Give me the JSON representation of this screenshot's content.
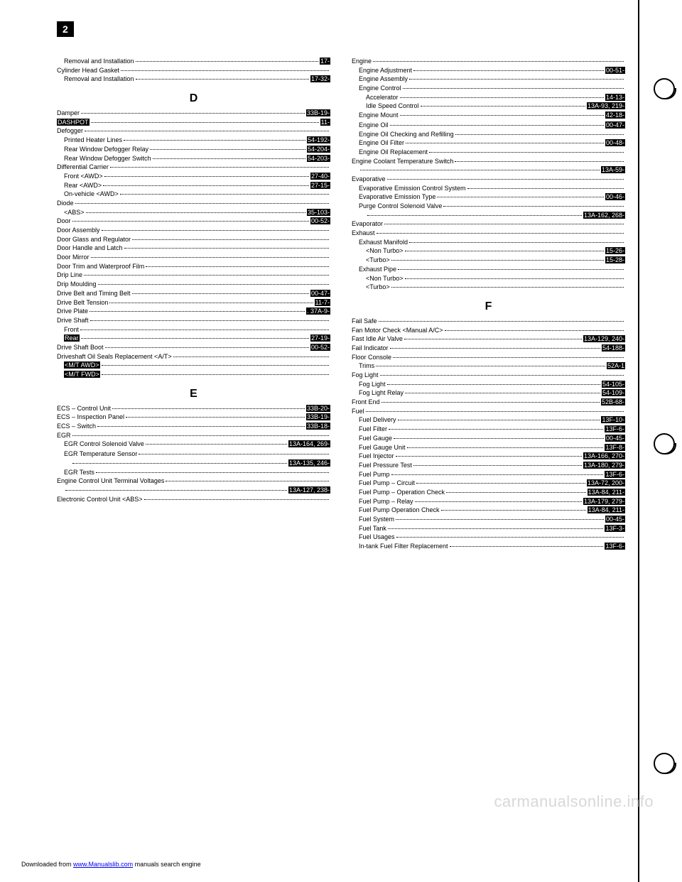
{
  "page_number": "2",
  "watermark": "carmanualsonline.info",
  "footer": {
    "prefix": "Downloaded from ",
    "link": "www.Manualslib.com",
    "suffix": " manuals search engine"
  },
  "left": [
    {
      "t": "Removal and Installation",
      "r": "17-",
      "i": 1,
      "hl_r": true
    },
    {
      "t": "Cylinder Head Gasket",
      "r": "",
      "i": 0
    },
    {
      "t": "Removal and Installation",
      "r": "17-32-",
      "i": 1,
      "hl_r": true
    },
    {
      "section": "D"
    },
    {
      "t": "Damper",
      "r": "33B-19-",
      "i": 0,
      "hl_r": true,
      "hl_t": false
    },
    {
      "t": "DASHPOT",
      "r": "11-",
      "i": 0,
      "hl_t": true,
      "hl_r": true
    },
    {
      "t": "Defogger",
      "r": "",
      "i": 0
    },
    {
      "t": "Printed Heater Lines",
      "r": "54-192-",
      "i": 1,
      "hl_r": true
    },
    {
      "t": "Rear Window Defogger Relay",
      "r": "54-204-",
      "i": 1,
      "hl_r": true
    },
    {
      "t": "Rear Window Defogger Switch",
      "r": "54-203-",
      "i": 1,
      "hl_r": true
    },
    {
      "t": "Differential Carrier",
      "r": "",
      "i": 0
    },
    {
      "t": "Front <AWD>",
      "r": "27-40-",
      "i": 1,
      "hl_r": true
    },
    {
      "t": "Rear <AWD>",
      "r": "27-15-",
      "i": 1,
      "hl_r": true
    },
    {
      "t": "On-vehicle <AWD>",
      "r": "",
      "i": 1
    },
    {
      "t": "Diode",
      "r": "",
      "i": 0
    },
    {
      "t": "<ABS>",
      "r": "35-103-",
      "i": 1,
      "hl_r": true
    },
    {
      "t": "Door",
      "r": "00-52-",
      "i": 0,
      "hl_r": true
    },
    {
      "t": "Door Assembly",
      "r": "",
      "i": 0
    },
    {
      "t": "Door Glass and Regulator",
      "r": "",
      "i": 0
    },
    {
      "t": "Door Handle and Latch",
      "r": "",
      "i": 0
    },
    {
      "t": "Door Mirror",
      "r": "",
      "i": 0
    },
    {
      "t": "Door Trim and Waterproof Film",
      "r": "",
      "i": 0
    },
    {
      "t": "Drip Line",
      "r": "",
      "i": 0
    },
    {
      "t": "Drip Moulding",
      "r": "",
      "i": 0
    },
    {
      "t": "Drive Belt and Timing Belt",
      "r": "00-47-",
      "i": 0,
      "hl_r": true
    },
    {
      "t": "Drive Belt Tension",
      "r": "11-7-",
      "i": 0,
      "hl_r": true
    },
    {
      "t": "Drive Plate",
      "r": ". 37A-9-",
      "i": 0,
      "hl_r": true
    },
    {
      "t": "Drive Shaft",
      "r": "",
      "i": 0
    },
    {
      "t": "Front",
      "r": "",
      "i": 1
    },
    {
      "t": "Rear",
      "r": "27-19-",
      "i": 1,
      "hl_t": true,
      "hl_r": true
    },
    {
      "t": "Drive Shaft Boot",
      "r": "00-52-",
      "i": 0,
      "hl_r": true
    },
    {
      "t": "Driveshaft Oil Seals Replacement <A/T>",
      "r": "",
      "i": 0
    },
    {
      "t": "<M/T AWD>",
      "r": "",
      "i": 1,
      "hl_t": true
    },
    {
      "t": "<M/T FWD>",
      "r": "",
      "i": 1,
      "hl_t": true
    },
    {
      "section": "E"
    },
    {
      "t": "ECS – Control Unit",
      "r": "33B-20-",
      "i": 0,
      "hl_r": true
    },
    {
      "t": "ECS – Inspection Panel",
      "r": "33B-19-",
      "i": 0,
      "hl_r": true
    },
    {
      "t": "ECS – Switch",
      "r": "33B-18-",
      "i": 0,
      "hl_r": true
    },
    {
      "t": "EGR",
      "r": "",
      "i": 0
    },
    {
      "t": "EGR Control Solenoid Valve",
      "r": "13A-164, 269-",
      "i": 1,
      "hl_r": true
    },
    {
      "t": " ",
      "r": " ",
      "i": 1,
      "noline": true
    },
    {
      "t": "EGR Temperature Sensor",
      "r": "",
      "i": 1
    },
    {
      "t": "",
      "r": "13A-135, 246-",
      "i": 2,
      "hl_r": true
    },
    {
      "t": "EGR Tests",
      "r": "",
      "i": 1
    },
    {
      "t": "Engine Control Unit Terminal Voltages",
      "r": "",
      "i": 0
    },
    {
      "t": "",
      "r": "13A-127, 238-",
      "i": 1,
      "hl_r": true
    },
    {
      "t": "Electronic Control Unit <ABS>",
      "r": "",
      "i": 0
    }
  ],
  "right": [
    {
      "t": "Engine",
      "r": "",
      "i": 0
    },
    {
      "t": "Engine Adjustment",
      "r": "00-51-",
      "i": 1,
      "hl_r": true
    },
    {
      "t": "Engine Assembly",
      "r": "",
      "i": 1
    },
    {
      "t": "Engine Control",
      "r": "",
      "i": 1
    },
    {
      "t": "Accelerator",
      "r": "14-13-",
      "i": 2,
      "hl_r": true
    },
    {
      "t": "Idle Speed Control",
      "r": "13A-93, 219-",
      "i": 2,
      "hl_r": true
    },
    {
      "t": "Engine Mount",
      "r": "42-18-",
      "i": 1,
      "hl_r": true
    },
    {
      "t": " ",
      "r": " ",
      "i": 1,
      "noline": true
    },
    {
      "t": "Engine Oil",
      "r": "00-47-",
      "i": 1,
      "hl_r": true
    },
    {
      "t": "Engine Oil Checking and Refilling",
      "r": "",
      "i": 1
    },
    {
      "t": "Engine Oil Filter",
      "r": "00-48-",
      "i": 1,
      "hl_r": true
    },
    {
      "t": "Engine Oil Replacement",
      "r": "",
      "i": 1
    },
    {
      "t": "Engine Coolant Temperature Switch",
      "r": "",
      "i": 0
    },
    {
      "t": "",
      "r": "13A-59-",
      "i": 1,
      "hl_r": true
    },
    {
      "t": "Evaporative",
      "r": "",
      "i": 0
    },
    {
      "t": "Evaporative Emission Control System",
      "r": "",
      "i": 1
    },
    {
      "t": "Evaporative Emission Type",
      "r": "00-46-",
      "i": 1,
      "hl_r": true
    },
    {
      "t": "Purge Control Solenoid Valve",
      "r": "",
      "i": 1
    },
    {
      "t": "",
      "r": "13A-162, 268-",
      "i": 2,
      "hl_r": true
    },
    {
      "t": "Evaporator",
      "r": "",
      "i": 0
    },
    {
      "t": "Exhaust",
      "r": "",
      "i": 0
    },
    {
      "t": "Exhaust Manifold",
      "r": "",
      "i": 1
    },
    {
      "t": "<Non Turbo>",
      "r": "15-26-",
      "i": 2,
      "hl_r": true
    },
    {
      "t": "<Turbo>",
      "r": "15-28-",
      "i": 2,
      "hl_r": true
    },
    {
      "t": "Exhaust Pipe",
      "r": "",
      "i": 1
    },
    {
      "t": "<Non Turbo>",
      "r": "",
      "i": 2
    },
    {
      "t": "<Turbo>",
      "r": "",
      "i": 2
    },
    {
      "section": "F"
    },
    {
      "t": "Fail Safe",
      "r": "",
      "i": 0
    },
    {
      "t": "Fan Motor Check <Manual A/C>",
      "r": "",
      "i": 0
    },
    {
      "t": "Fast Idle Air Valve",
      "r": "13A-129, 240-",
      "i": 0,
      "hl_r": true
    },
    {
      "t": "Fail Indicator",
      "r": "54-188-",
      "i": 0,
      "hl_r": true
    },
    {
      "t": "Floor Console",
      "r": "",
      "i": 0
    },
    {
      "t": "Trims",
      "r": "52A-1",
      "i": 1,
      "hl_r": true
    },
    {
      "t": "Fog Light",
      "r": "",
      "i": 0
    },
    {
      "t": "Fog Light",
      "r": "54-105-",
      "i": 1,
      "hl_r": true
    },
    {
      "t": "Fog Light Relay",
      "r": "54-109-",
      "i": 1,
      "hl_r": true
    },
    {
      "t": "Front End",
      "r": "52B-68-",
      "i": 0,
      "hl_r": true
    },
    {
      "t": "Fuel",
      "r": "",
      "i": 0
    },
    {
      "t": "Fuel Delivery",
      "r": "13F-10-",
      "i": 1,
      "hl_r": true
    },
    {
      "t": "Fuel Filter",
      "r": "13F-6-",
      "i": 1,
      "hl_r": true
    },
    {
      "t": "Fuel Gauge",
      "r": "00-45-",
      "i": 1,
      "hl_r": true
    },
    {
      "t": "Fuel Gauge Unit",
      "r": "13F-8-",
      "i": 1,
      "hl_r": true
    },
    {
      "t": "Fuel Injector",
      "r": "13A-166, 270-",
      "i": 1,
      "hl_r": true
    },
    {
      "t": "Fuel Pressure Test",
      "r": "13A-180, 279-",
      "i": 1,
      "hl_r": true
    },
    {
      "t": "Fuel Pump",
      "r": "13F-6-",
      "i": 1,
      "hl_r": true
    },
    {
      "t": "Fuel Pump – Circuit",
      "r": "13A-72, 200-",
      "i": 1,
      "hl_r": true
    },
    {
      "t": "Fuel Pump – Operation Check",
      "r": "13A-84, 211-",
      "i": 1,
      "hl_r": true
    },
    {
      "t": "Fuel Pump – Relay",
      "r": "13A-179, 279-",
      "i": 1,
      "hl_r": true
    },
    {
      "t": "Fuel Pump Operation Check",
      "r": "13A-84, 211-",
      "i": 1,
      "hl_r": true
    },
    {
      "t": "Fuel System",
      "r": "00-45-",
      "i": 1,
      "hl_r": true
    },
    {
      "t": "Fuel Tank",
      "r": "13F-3-",
      "i": 1,
      "hl_r": true
    },
    {
      "t": "Fuel Usages",
      "r": "",
      "i": 1
    },
    {
      "t": "In-tank Fuel Filter Replacement",
      "r": "13F-6-",
      "i": 1,
      "hl_r": true
    }
  ]
}
